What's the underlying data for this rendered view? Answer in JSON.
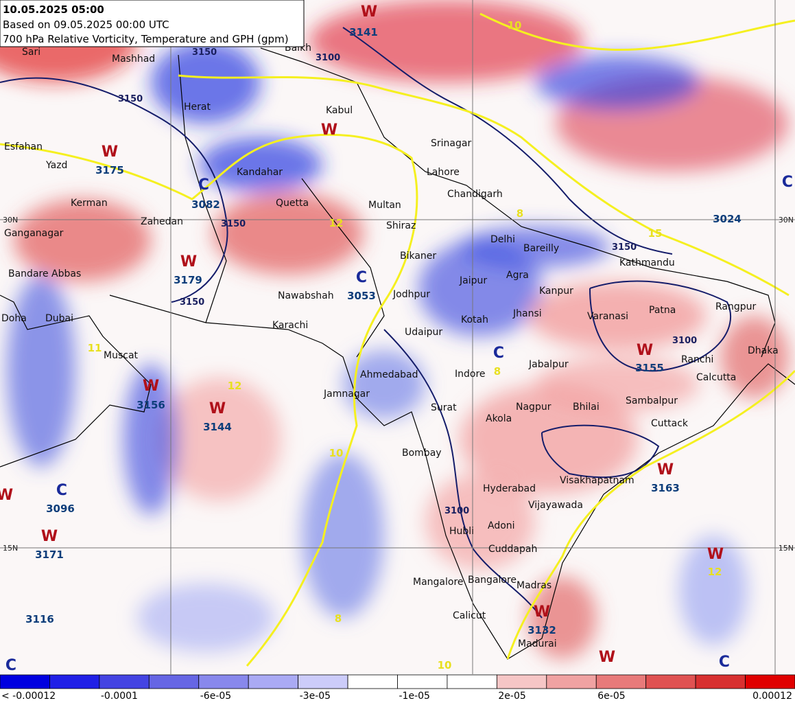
{
  "header": {
    "title": "10.05.2025 05:00",
    "subtitle": "Based on 09.05.2025 00:00 UTC",
    "description": "700 hPa Relative Vorticity, Temperature and GPH (gpm)"
  },
  "cities": [
    "Sari",
    "Mashhad",
    "Balkh",
    "Herat",
    "Kabul",
    "Srinagar",
    "Esfahan",
    "Yazd",
    "Kandahar",
    "Lahore",
    "Chandigarh",
    "Kerman",
    "Quetta",
    "Multan",
    "Zahedan",
    "Ganganagar",
    "Shiraz",
    "Delhi",
    "Bareilly",
    "Bikaner",
    "Kathmandu",
    "Bandare Abbas",
    "Jaipur",
    "Agra",
    "Kanpur",
    "Jodhpur",
    "Nawabshah",
    "Rangpur",
    "Patna",
    "Varanasi",
    "Jhansi",
    "Kotah",
    "Doha",
    "Dubai",
    "Karachi",
    "Udaipur",
    "Dhaka",
    "Muscat",
    "Ranchi",
    "Jabalpur",
    "Ahmedabad",
    "Indore",
    "Calcutta",
    "Jamnagar",
    "Sambalpur",
    "Nagpur",
    "Bhilai",
    "Surat",
    "Akola",
    "Cuttack",
    "Bombay",
    "Visakhapatnam",
    "Hyderabad",
    "Vijayawada",
    "Adoni",
    "Hubli",
    "Cuddapah",
    "Bangalore",
    "Mangalore",
    "Madras",
    "Calicut",
    "Madurai"
  ],
  "centers": [
    "W",
    "W",
    "W",
    "C",
    "W",
    "C",
    "W",
    "W",
    "C",
    "W",
    "C",
    "W",
    "W",
    "W",
    "C",
    "W",
    "W",
    "W",
    "C",
    "C"
  ],
  "heights": [
    "3141",
    "3175",
    "3082",
    "3179",
    "3053",
    "3156",
    "3144",
    "3096",
    "3171",
    "3116",
    "3155",
    "3163",
    "3132",
    "3024"
  ],
  "contour_labels": [
    "3150",
    "3100",
    "3150",
    "3150",
    "3150",
    "3100",
    "3100",
    "3150"
  ],
  "temperatures": [
    "10",
    "12",
    "8",
    "15",
    "11",
    "12",
    "8",
    "10",
    "12",
    "8",
    "10"
  ],
  "grid_labels": [
    "30N",
    "15N",
    "30N",
    "15N"
  ],
  "colorbar": {
    "colors": [
      "#0000e0",
      "#2020e6",
      "#4444e2",
      "#6666e4",
      "#8888ec",
      "#aaaaf4",
      "#ccccfa",
      "#ffffff",
      "#ffffff",
      "#ffffff",
      "#f6c6c6",
      "#f0a2a2",
      "#e87a7a",
      "#e05252",
      "#d83030",
      "#e00000"
    ],
    "labels": [
      "< -0.00012",
      "-0.0001",
      "-6e-05",
      "-3e-05",
      "-1e-05",
      "2e-05",
      "6e-05",
      "0.00012"
    ]
  }
}
